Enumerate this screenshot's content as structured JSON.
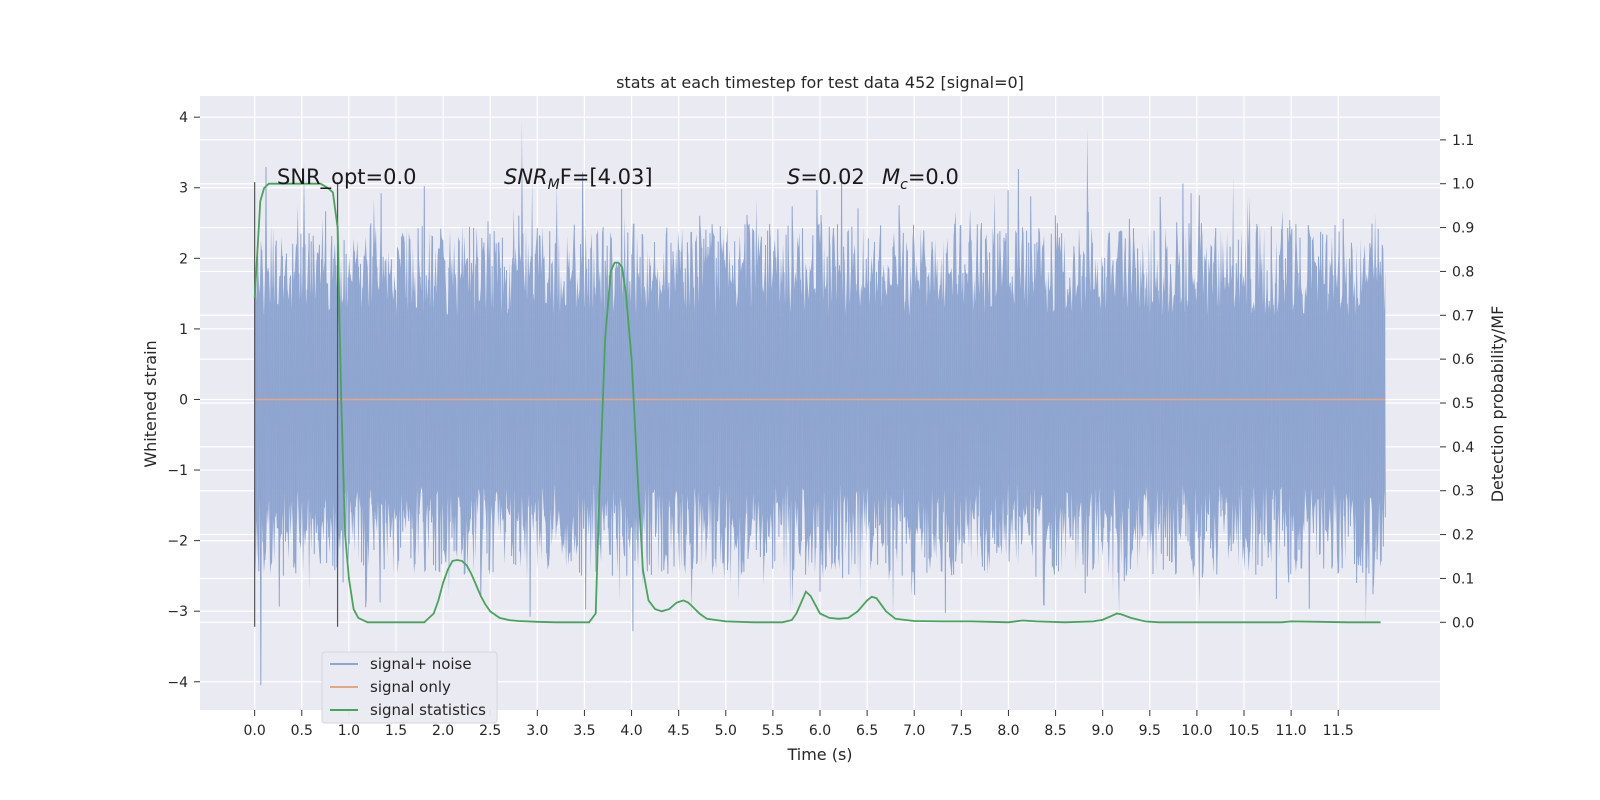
{
  "chart_data": {
    "type": "line",
    "title": "stats at each timestep for test data 452 [signal=0]",
    "xlabel": "Time (s)",
    "ylabel": "Whitened strain",
    "y2label": "Detection probability/MF",
    "xlim": [
      -0.58,
      12.58
    ],
    "ylim": [
      -4.4,
      4.3
    ],
    "y2lim": [
      -0.2,
      1.2
    ],
    "x_ticks": [
      "0.0",
      "0.5",
      "1.0",
      "1.5",
      "2.0",
      "2.5",
      "3.0",
      "3.5",
      "4.0",
      "4.5",
      "5.0",
      "5.5",
      "6.0",
      "6.5",
      "7.0",
      "7.5",
      "8.0",
      "8.5",
      "9.0",
      "9.5",
      "10.0",
      "10.5",
      "11.0",
      "11.5"
    ],
    "y_ticks": [
      "4",
      "3",
      "2",
      "1",
      "0",
      "−1",
      "−2",
      "−3",
      "−4"
    ],
    "y2_ticks": [
      "1.1",
      "1.0",
      "0.9",
      "0.8",
      "0.7",
      "0.6",
      "0.5",
      "0.4",
      "0.3",
      "0.2",
      "0.1",
      "0.0"
    ],
    "grid": true,
    "legend_position": "lower-left",
    "annotations": {
      "snr_opt": "SNR_opt=0.0",
      "snr_mf_main": "SNR",
      "snr_mf_sub": "M",
      "snr_mf_rest": "F=[4.03]",
      "s_label": "S",
      "s_rest": "=0.02",
      "mc_main": "M",
      "mc_sub": "c",
      "mc_rest": "=0.0"
    },
    "markers": {
      "vertical_lines_x": [
        0.0,
        0.88
      ]
    },
    "series": [
      {
        "name": "signal+ noise",
        "color": "#8ea5d0",
        "kind": "noise",
        "t_range": [
          0.0,
          12.0
        ],
        "typical_range": [
          -2.5,
          2.5
        ],
        "extremes": [
          4.1,
          -4.05
        ]
      },
      {
        "name": "signal only",
        "color": "#e6a583",
        "x": [
          0.0,
          12.0
        ],
        "y": [
          0.0,
          0.0
        ]
      },
      {
        "name": "signal statistics",
        "color": "#4aa35c",
        "axis": "right",
        "x": [
          0.0,
          0.03,
          0.06,
          0.1,
          0.15,
          0.25,
          0.4,
          0.55,
          0.7,
          0.78,
          0.83,
          0.88,
          0.92,
          0.96,
          1.0,
          1.05,
          1.1,
          1.2,
          1.3,
          1.5,
          1.7,
          1.8,
          1.85,
          1.9,
          1.95,
          2.0,
          2.05,
          2.1,
          2.15,
          2.2,
          2.25,
          2.3,
          2.35,
          2.4,
          2.45,
          2.5,
          2.6,
          2.7,
          2.8,
          3.0,
          3.2,
          3.4,
          3.55,
          3.62,
          3.66,
          3.72,
          3.78,
          3.82,
          3.86,
          3.9,
          3.94,
          4.0,
          4.06,
          4.12,
          4.18,
          4.25,
          4.32,
          4.4,
          4.48,
          4.55,
          4.6,
          4.65,
          4.72,
          4.8,
          5.0,
          5.3,
          5.6,
          5.7,
          5.75,
          5.8,
          5.85,
          5.9,
          6.0,
          6.1,
          6.2,
          6.3,
          6.4,
          6.5,
          6.55,
          6.6,
          6.65,
          6.7,
          6.8,
          7.0,
          7.3,
          7.6,
          7.8,
          8.0,
          8.15,
          8.3,
          8.6,
          8.9,
          9.0,
          9.1,
          9.15,
          9.2,
          9.3,
          9.45,
          9.6,
          10.0,
          10.5,
          10.9,
          11.0,
          11.3,
          11.6,
          11.95
        ],
        "y": [
          0.74,
          0.85,
          0.96,
          0.99,
          1.0,
          1.0,
          1.0,
          1.0,
          1.0,
          0.99,
          0.98,
          0.9,
          0.5,
          0.2,
          0.1,
          0.03,
          0.01,
          0.0,
          0.0,
          0.0,
          0.0,
          0.0,
          0.01,
          0.02,
          0.05,
          0.09,
          0.12,
          0.14,
          0.142,
          0.14,
          0.13,
          0.11,
          0.085,
          0.06,
          0.04,
          0.025,
          0.01,
          0.005,
          0.003,
          0.001,
          0.0,
          0.0,
          0.0,
          0.02,
          0.3,
          0.65,
          0.8,
          0.82,
          0.82,
          0.81,
          0.75,
          0.6,
          0.35,
          0.12,
          0.05,
          0.03,
          0.025,
          0.03,
          0.045,
          0.05,
          0.045,
          0.035,
          0.02,
          0.008,
          0.002,
          0.0,
          0.0,
          0.005,
          0.02,
          0.045,
          0.07,
          0.06,
          0.02,
          0.01,
          0.008,
          0.01,
          0.025,
          0.05,
          0.058,
          0.055,
          0.04,
          0.025,
          0.008,
          0.003,
          0.002,
          0.002,
          0.001,
          0.0,
          0.004,
          0.002,
          0.0,
          0.002,
          0.006,
          0.015,
          0.02,
          0.018,
          0.01,
          0.002,
          0.0,
          0.0,
          0.0,
          0.0,
          0.002,
          0.001,
          0.0,
          0.0
        ]
      }
    ]
  }
}
